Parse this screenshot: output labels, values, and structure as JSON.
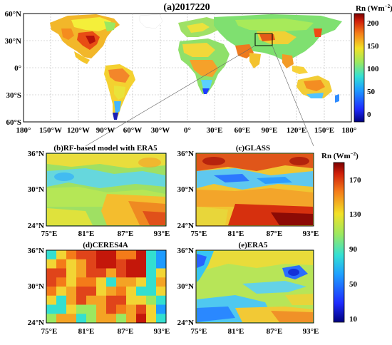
{
  "figure": {
    "main": {
      "title": "(a)2017220",
      "lat_labels": [
        "60°N",
        "30°N",
        "0°",
        "30°S",
        "60°S"
      ],
      "lon_labels": [
        "180°",
        "150°W",
        "120°W",
        "90°W",
        "60°W",
        "30°W",
        "0°",
        "30°E",
        "60°E",
        "90°E",
        "120°E",
        "150°E",
        "180°"
      ],
      "colorbar": {
        "label": "Rn (Wm",
        "label_sup": "−2",
        "label_close": ")",
        "ticks": [
          "200",
          "150",
          "100",
          "50",
          "0"
        ],
        "range": [
          -20,
          220
        ]
      }
    },
    "panels": [
      {
        "id": "b",
        "title": "(b)RF-based model with ERA5",
        "lat_labels": [
          "36°N",
          "30°N",
          "24°N"
        ],
        "lon_labels": [
          "75°E",
          "81°E",
          "87°E",
          "93°E"
        ]
      },
      {
        "id": "c",
        "title": "(c)GLASS",
        "lat_labels": [
          "36°N",
          "30°N",
          "24°N"
        ],
        "lon_labels": [
          "75°E",
          "81°E",
          "87°E",
          "93°E"
        ]
      },
      {
        "id": "d",
        "title": "(d)CERES4A",
        "lat_labels": [
          "36°N",
          "30°N",
          "24°N"
        ],
        "lon_labels": [
          "75°E",
          "81°E",
          "87°E",
          "93°E"
        ]
      },
      {
        "id": "e",
        "title": "(e)ERA5",
        "lat_labels": [
          "36°N",
          "30°N",
          "24°N"
        ],
        "lon_labels": [
          "75°E",
          "81°E",
          "87°E",
          "93°E"
        ]
      }
    ],
    "small_colorbar": {
      "label": "Rn (Wm",
      "label_sup": "−2",
      "label_close": ")",
      "ticks": [
        "170",
        "130",
        "90",
        "50",
        "10"
      ],
      "range": [
        10,
        190
      ]
    },
    "colors": {
      "low": "#00007f",
      "blue": "#1e5bff",
      "cyan": "#33dfd0",
      "green": "#9be860",
      "yellow": "#f2e126",
      "orange": "#f47b19",
      "red": "#c4170a",
      "high": "#7a0000"
    }
  }
}
